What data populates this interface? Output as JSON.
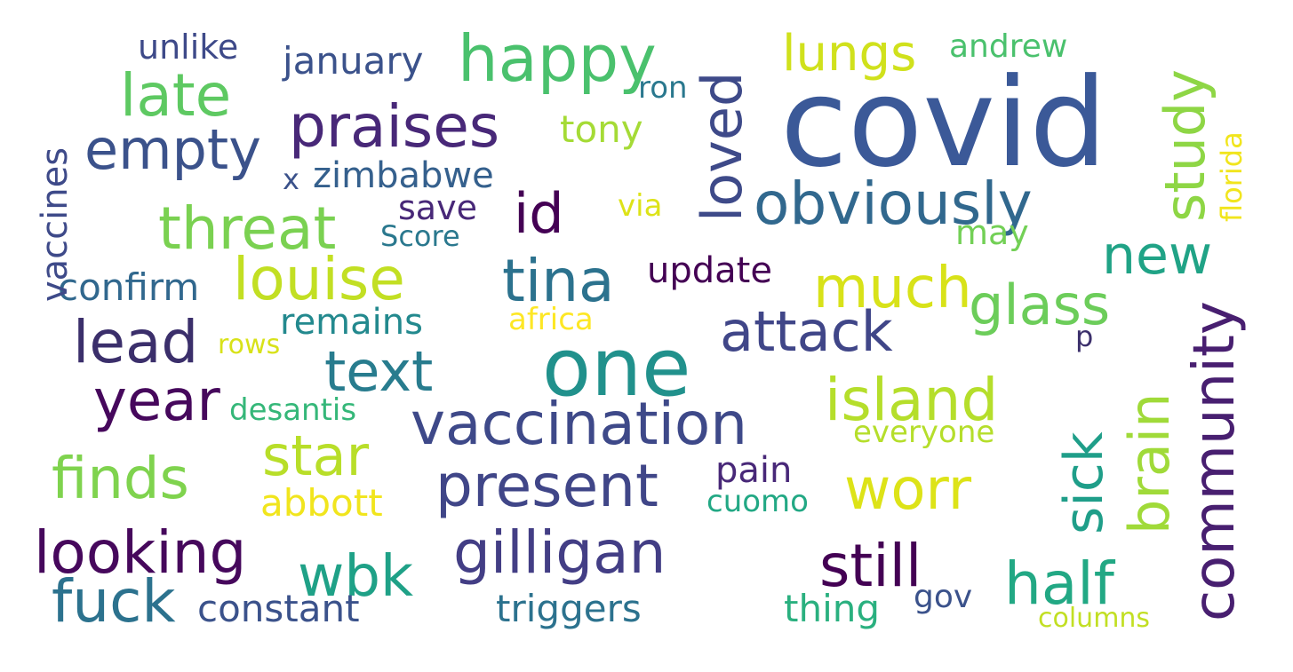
{
  "words": [
    {
      "text": "covid",
      "color": "#3b5998"
    },
    {
      "text": "one",
      "color": "#21918c"
    },
    {
      "text": "happy",
      "color": "#4ac16d"
    },
    {
      "text": "praises",
      "color": "#482878"
    },
    {
      "text": "empty",
      "color": "#3b528b"
    },
    {
      "text": "late",
      "color": "#5ec962"
    },
    {
      "text": "threat",
      "color": "#7ad151"
    },
    {
      "text": "id",
      "color": "#440154"
    },
    {
      "text": "obviously",
      "color": "#31688e"
    },
    {
      "text": "loved",
      "color": "#3e4a89"
    },
    {
      "text": "louise",
      "color": "#c2df23"
    },
    {
      "text": "tina",
      "color": "#2c728e"
    },
    {
      "text": "lead",
      "color": "#3b2f6b"
    },
    {
      "text": "attack",
      "color": "#404688"
    },
    {
      "text": "much",
      "color": "#d8e219"
    },
    {
      "text": "glass",
      "color": "#6ccd5a"
    },
    {
      "text": "new",
      "color": "#20a386"
    },
    {
      "text": "text",
      "color": "#287c8e"
    },
    {
      "text": "year",
      "color": "#46085c"
    },
    {
      "text": "vaccination",
      "color": "#3e4989"
    },
    {
      "text": "island",
      "color": "#b5de2b"
    },
    {
      "text": "finds",
      "color": "#7fd34e"
    },
    {
      "text": "star",
      "color": "#b8de29"
    },
    {
      "text": "present",
      "color": "#404688"
    },
    {
      "text": "worr",
      "color": "#dde318"
    },
    {
      "text": "looking",
      "color": "#46085c"
    },
    {
      "text": "gilligan",
      "color": "#433e85"
    },
    {
      "text": "still",
      "color": "#440154"
    },
    {
      "text": "half",
      "color": "#22a884"
    },
    {
      "text": "fuck",
      "color": "#2c728e"
    },
    {
      "text": "wbk",
      "color": "#1fa187"
    },
    {
      "text": "community",
      "color": "#481f70"
    },
    {
      "text": "brain",
      "color": "#a0da39"
    },
    {
      "text": "sick",
      "color": "#1f9e89"
    },
    {
      "text": "study",
      "color": "#8ed645"
    },
    {
      "text": "lungs",
      "color": "#d0e11c"
    },
    {
      "text": "january",
      "color": "#3b528b"
    },
    {
      "text": "unlike",
      "color": "#3e4a89"
    },
    {
      "text": "andrew",
      "color": "#4ac16d"
    },
    {
      "text": "ron",
      "color": "#2a788e"
    },
    {
      "text": "tony",
      "color": "#a5db36"
    },
    {
      "text": "zimbabwe",
      "color": "#35608d"
    },
    {
      "text": "x",
      "color": "#3b528b"
    },
    {
      "text": "save",
      "color": "#482878"
    },
    {
      "text": "via",
      "color": "#dde318"
    },
    {
      "text": "Score",
      "color": "#2a788e"
    },
    {
      "text": "may",
      "color": "#73d056"
    },
    {
      "text": "update",
      "color": "#440154"
    },
    {
      "text": "confirm",
      "color": "#31688e"
    },
    {
      "text": "vaccines",
      "color": "#3e4a89"
    },
    {
      "text": "remains",
      "color": "#23898e"
    },
    {
      "text": "africa",
      "color": "#fde725"
    },
    {
      "text": "rows",
      "color": "#d8e219"
    },
    {
      "text": "p",
      "color": "#3b2f6b"
    },
    {
      "text": "desantis",
      "color": "#35b779"
    },
    {
      "text": "everyone",
      "color": "#b5de2b"
    },
    {
      "text": "pain",
      "color": "#482878"
    },
    {
      "text": "abbott",
      "color": "#f1e51d"
    },
    {
      "text": "cuomo",
      "color": "#22a884"
    },
    {
      "text": "constant",
      "color": "#3b528b"
    },
    {
      "text": "triggers",
      "color": "#2c728e"
    },
    {
      "text": "thing",
      "color": "#2ab07f"
    },
    {
      "text": "gov",
      "color": "#3b528b"
    },
    {
      "text": "columns",
      "color": "#c2df23"
    },
    {
      "text": "florida",
      "color": "#f1e51d"
    }
  ]
}
